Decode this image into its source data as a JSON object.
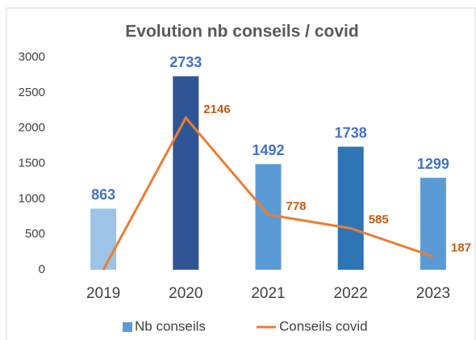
{
  "chart_data": {
    "type": "bar_line",
    "title": "Evolution nb conseils / covid",
    "categories": [
      "2019",
      "2020",
      "2021",
      "2022",
      "2023"
    ],
    "series": [
      {
        "name": "Nb conseils",
        "type": "bar",
        "color": "#5b9bd5",
        "colors": [
          "#9dc3e6",
          "#2f5597",
          "#5b9bd5",
          "#2e75b6",
          "#5b9bd5"
        ],
        "label_color": "#4472c4",
        "values": [
          863,
          2733,
          1492,
          1738,
          1299
        ]
      },
      {
        "name": "Conseils covid",
        "type": "line",
        "color": "#ed7d31",
        "label_color": "#c55a11",
        "values": [
          0,
          2146,
          778,
          585,
          187
        ],
        "value_labels": [
          null,
          "2146",
          "778",
          "585",
          "187"
        ]
      }
    ],
    "ylim": [
      0,
      3000
    ],
    "yticks": [
      0,
      500,
      1000,
      1500,
      2000,
      2500,
      3000
    ],
    "grid": false,
    "legend": "bottom"
  }
}
